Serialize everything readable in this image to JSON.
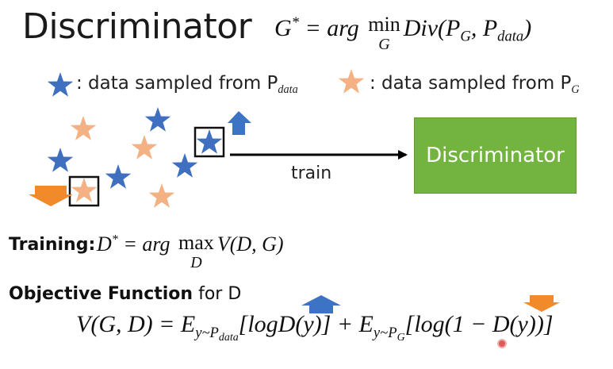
{
  "title": "Discriminator",
  "top_formula": {
    "lhs": "G",
    "star": "*",
    "eq": "= arg",
    "op": "min",
    "op_sub": "G",
    "rhs": "Div(P",
    "sub_g": "G",
    "comma": ", P",
    "sub_data": "data",
    "close": ")"
  },
  "legend": {
    "data_label": ": data sampled from P",
    "data_sub": "data",
    "gen_label": ": data sampled from P",
    "gen_sub": "G"
  },
  "diagram": {
    "arrow_label": "train",
    "discriminator_label": "Discriminator",
    "colors": {
      "data_star": "#3f6fbf",
      "gen_star": "#f3b184",
      "box": "#73b33f",
      "up_arrow": "#3c73c4",
      "down_arrow": "#f08a2a"
    }
  },
  "training": {
    "label": "Training:",
    "lhs": "D",
    "star": "*",
    "eq": "= arg",
    "op": "max",
    "op_sub": "D",
    "rhs": "V(D, G)"
  },
  "objective": {
    "label_bold": "Objective Function",
    "label_rest": " for D",
    "lhs": "V(G, D) = E",
    "e1_sub": "y~P",
    "e1_subsub": "data",
    "term1": "[logD(y)] + E",
    "e2_sub": "y~P",
    "e2_subsub": "G",
    "term2": "[log(1 − D(y))]"
  }
}
